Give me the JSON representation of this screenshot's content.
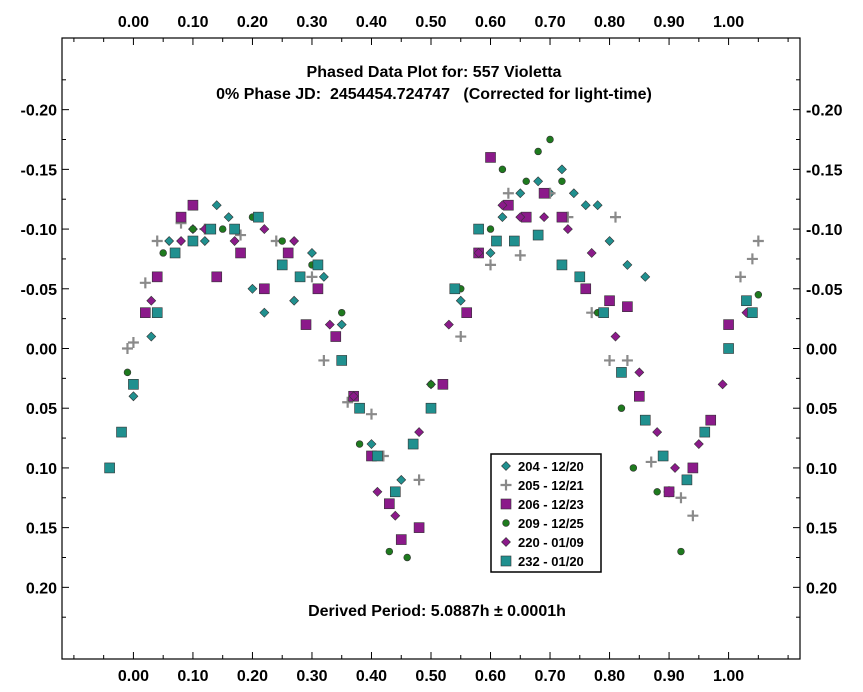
{
  "chart_data": {
    "type": "scatter",
    "title": "Phased Data Plot for: 557 Violetta",
    "subtitle": "0% Phase JD:  2454454.724747   (Corrected for light-time)",
    "annotation": "Derived Period: 5.0887h ± 0.0001h",
    "xlim": [
      -0.12,
      1.12
    ],
    "ylim": [
      0.26,
      -0.26
    ],
    "x_ticks": [
      0.0,
      0.1,
      0.2,
      0.3,
      0.4,
      0.5,
      0.6,
      0.7,
      0.8,
      0.9,
      1.0
    ],
    "x_tick_labels": [
      "0.00",
      "0.10",
      "0.20",
      "0.30",
      "0.40",
      "0.50",
      "0.60",
      "0.70",
      "0.80",
      "0.90",
      "1.00"
    ],
    "y_ticks": [
      -0.2,
      -0.15,
      -0.1,
      -0.05,
      0.0,
      0.05,
      0.1,
      0.15,
      0.2
    ],
    "y_tick_labels": [
      "-0.20",
      "-0.15",
      "-0.10",
      "-0.05",
      "0.00",
      "0.05",
      "0.10",
      "0.15",
      "0.20"
    ],
    "grid": false,
    "legend_position": "lower-right",
    "series": [
      {
        "name": "204 - 12/20",
        "marker": "diamond",
        "color": "#20908f",
        "x": [
          0.0,
          0.03,
          0.06,
          0.1,
          0.12,
          0.14,
          0.16,
          0.2,
          0.22,
          0.25,
          0.27,
          0.3,
          0.32,
          0.35,
          0.4,
          0.45,
          0.5,
          0.55,
          0.6,
          0.62,
          0.65,
          0.68,
          0.7,
          0.72,
          0.74,
          0.76,
          0.78,
          0.8,
          0.83,
          0.86
        ],
        "y": [
          0.04,
          -0.01,
          -0.09,
          -0.1,
          -0.09,
          -0.12,
          -0.11,
          -0.05,
          -0.03,
          -0.07,
          -0.04,
          -0.08,
          -0.06,
          -0.02,
          0.08,
          0.11,
          0.03,
          -0.04,
          -0.08,
          -0.11,
          -0.13,
          -0.14,
          -0.13,
          -0.15,
          -0.13,
          -0.12,
          -0.12,
          -0.09,
          -0.07,
          -0.06
        ]
      },
      {
        "name": "205 - 12/21",
        "marker": "plus",
        "color": "#8a8a8a",
        "x": [
          -0.01,
          0.0,
          0.02,
          0.04,
          0.08,
          0.12,
          0.18,
          0.24,
          0.3,
          0.32,
          0.36,
          0.4,
          0.42,
          0.48,
          0.55,
          0.6,
          0.63,
          0.65,
          0.7,
          0.73,
          0.77,
          0.8,
          0.81,
          0.83,
          0.87,
          0.9,
          0.92,
          0.94,
          1.02,
          1.04,
          1.05
        ],
        "y": [
          0.0,
          -0.005,
          -0.055,
          -0.09,
          -0.105,
          -0.1,
          -0.095,
          -0.09,
          -0.06,
          0.01,
          0.045,
          0.055,
          0.09,
          0.11,
          -0.01,
          -0.07,
          -0.13,
          -0.078,
          -0.13,
          -0.11,
          -0.03,
          0.01,
          -0.11,
          0.01,
          0.095,
          0.12,
          0.125,
          0.14,
          -0.06,
          -0.075,
          -0.09
        ]
      },
      {
        "name": "206 - 12/23",
        "marker": "square",
        "color": "#8b1a8a",
        "x": [
          0.02,
          0.04,
          0.08,
          0.1,
          0.14,
          0.18,
          0.22,
          0.26,
          0.29,
          0.31,
          0.34,
          0.37,
          0.4,
          0.43,
          0.45,
          0.48,
          0.52,
          0.56,
          0.58,
          0.6,
          0.63,
          0.66,
          0.69,
          0.72,
          0.76,
          0.8,
          0.83,
          0.85,
          0.9,
          0.94,
          0.97,
          1.0
        ],
        "y": [
          -0.03,
          -0.06,
          -0.11,
          -0.12,
          -0.06,
          -0.08,
          -0.05,
          -0.08,
          -0.02,
          -0.05,
          -0.01,
          0.04,
          0.09,
          0.13,
          0.16,
          0.15,
          0.03,
          -0.03,
          -0.08,
          -0.16,
          -0.12,
          -0.11,
          -0.13,
          -0.11,
          -0.05,
          -0.04,
          -0.035,
          0.04,
          0.12,
          0.1,
          0.06,
          -0.02
        ]
      },
      {
        "name": "209 - 12/25",
        "marker": "circle",
        "color": "#1e7a1e",
        "x": [
          -0.01,
          0.05,
          0.1,
          0.15,
          0.2,
          0.25,
          0.3,
          0.35,
          0.38,
          0.43,
          0.46,
          0.5,
          0.55,
          0.6,
          0.62,
          0.66,
          0.68,
          0.7,
          0.72,
          0.78,
          0.82,
          0.84,
          0.88,
          0.92,
          1.0,
          1.03,
          1.05
        ],
        "y": [
          0.02,
          -0.08,
          -0.1,
          -0.1,
          -0.11,
          -0.09,
          -0.07,
          -0.03,
          0.08,
          0.17,
          0.175,
          0.03,
          -0.05,
          -0.1,
          -0.15,
          -0.14,
          -0.165,
          -0.175,
          -0.14,
          -0.03,
          0.05,
          0.1,
          0.12,
          0.17,
          0.0,
          -0.04,
          -0.045
        ]
      },
      {
        "name": "220 - 01/09",
        "marker": "diamond",
        "color": "#8b1a8a",
        "x": [
          0.0,
          0.03,
          0.08,
          0.12,
          0.17,
          0.22,
          0.27,
          0.33,
          0.37,
          0.41,
          0.44,
          0.48,
          0.53,
          0.58,
          0.62,
          0.65,
          0.69,
          0.73,
          0.77,
          0.81,
          0.85,
          0.88,
          0.91,
          0.95,
          0.99,
          1.03
        ],
        "y": [
          0.03,
          -0.04,
          -0.09,
          -0.1,
          -0.09,
          -0.1,
          -0.09,
          -0.02,
          0.04,
          0.12,
          0.14,
          0.07,
          -0.02,
          -0.08,
          -0.12,
          -0.11,
          -0.11,
          -0.1,
          -0.08,
          -0.01,
          0.02,
          0.07,
          0.1,
          0.08,
          0.03,
          -0.03
        ]
      },
      {
        "name": "232 - 01/20",
        "marker": "square",
        "color": "#20908f",
        "x": [
          -0.04,
          -0.02,
          0.0,
          0.04,
          0.07,
          0.1,
          0.13,
          0.17,
          0.21,
          0.25,
          0.28,
          0.31,
          0.35,
          0.38,
          0.41,
          0.44,
          0.47,
          0.5,
          0.54,
          0.58,
          0.61,
          0.64,
          0.68,
          0.72,
          0.75,
          0.79,
          0.82,
          0.86,
          0.89,
          0.93,
          0.96,
          1.0,
          1.03,
          1.04
        ],
        "y": [
          0.1,
          0.07,
          0.03,
          -0.03,
          -0.08,
          -0.09,
          -0.1,
          -0.1,
          -0.11,
          -0.07,
          -0.06,
          -0.07,
          0.01,
          0.05,
          0.09,
          0.12,
          0.08,
          0.05,
          -0.05,
          -0.1,
          -0.09,
          -0.09,
          -0.095,
          -0.07,
          -0.06,
          -0.03,
          0.02,
          0.06,
          0.09,
          0.11,
          0.07,
          0.0,
          -0.04,
          -0.03
        ]
      }
    ]
  }
}
